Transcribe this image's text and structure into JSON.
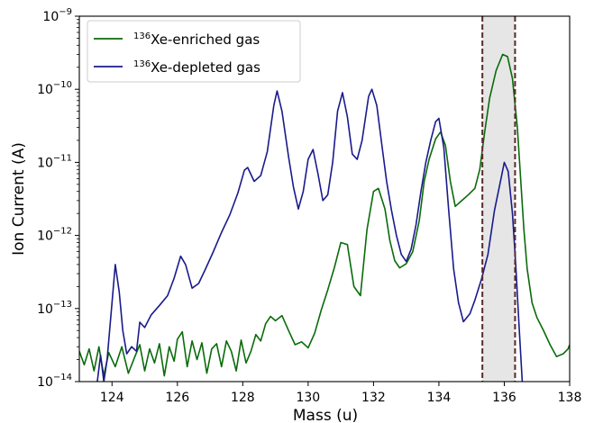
{
  "chart_data": {
    "type": "line",
    "title": "",
    "xlabel": "Mass (u)",
    "ylabel": "Ion Current (A)",
    "xlim": [
      123,
      138
    ],
    "ylim": [
      1e-14,
      1e-09
    ],
    "yscale": "log",
    "x_ticks": [
      124,
      126,
      128,
      130,
      132,
      134,
      136,
      138
    ],
    "x_tick_labels": [
      "124",
      "126",
      "128",
      "130",
      "132",
      "134",
      "136",
      "138"
    ],
    "y_ticks": [
      1e-14,
      1e-13,
      1e-12,
      1e-11,
      1e-10,
      1e-09
    ],
    "y_tick_labels": [
      {
        "base": "10",
        "exp": "−14"
      },
      {
        "base": "10",
        "exp": "−13"
      },
      {
        "base": "10",
        "exp": "−12"
      },
      {
        "base": "10",
        "exp": "−11"
      },
      {
        "base": "10",
        "exp": "−10"
      },
      {
        "base": "10",
        "exp": "−9"
      }
    ],
    "grid": false,
    "legend_position": "top-left",
    "shaded_region": {
      "x": [
        135.33,
        136.33
      ],
      "color": "#e6e6e6",
      "edge_color": "#5a2a2a"
    },
    "series": [
      {
        "name_sup": "136",
        "name": "Xe-enriched gas",
        "color": "#0a6b0a",
        "points": [
          [
            123.0,
            2.6e-14
          ],
          [
            123.15,
            1.7e-14
          ],
          [
            123.3,
            2.8e-14
          ],
          [
            123.45,
            1.4e-14
          ],
          [
            123.6,
            3e-14
          ],
          [
            123.75,
            1.2e-14
          ],
          [
            123.9,
            2.5e-14
          ],
          [
            124.1,
            1.6e-14
          ],
          [
            124.3,
            3e-14
          ],
          [
            124.5,
            1.3e-14
          ],
          [
            124.7,
            2.2e-14
          ],
          [
            124.85,
            3.2e-14
          ],
          [
            125.0,
            1.4e-14
          ],
          [
            125.15,
            2.8e-14
          ],
          [
            125.3,
            1.8e-14
          ],
          [
            125.45,
            3.3e-14
          ],
          [
            125.6,
            1.2e-14
          ],
          [
            125.75,
            3e-14
          ],
          [
            125.9,
            1.9e-14
          ],
          [
            126.0,
            3.8e-14
          ],
          [
            126.15,
            4.8e-14
          ],
          [
            126.3,
            1.6e-14
          ],
          [
            126.45,
            3.6e-14
          ],
          [
            126.6,
            2e-14
          ],
          [
            126.75,
            3.4e-14
          ],
          [
            126.9,
            1.3e-14
          ],
          [
            127.05,
            2.8e-14
          ],
          [
            127.2,
            3.3e-14
          ],
          [
            127.35,
            1.6e-14
          ],
          [
            127.5,
            3.6e-14
          ],
          [
            127.65,
            2.6e-14
          ],
          [
            127.8,
            1.4e-14
          ],
          [
            127.95,
            3.7e-14
          ],
          [
            128.1,
            1.8e-14
          ],
          [
            128.25,
            2.6e-14
          ],
          [
            128.4,
            4.4e-14
          ],
          [
            128.55,
            3.6e-14
          ],
          [
            128.7,
            6.2e-14
          ],
          [
            128.85,
            7.8e-14
          ],
          [
            129.0,
            6.8e-14
          ],
          [
            129.2,
            8e-14
          ],
          [
            129.4,
            5e-14
          ],
          [
            129.6,
            3.2e-14
          ],
          [
            129.8,
            3.5e-14
          ],
          [
            130.0,
            2.9e-14
          ],
          [
            130.2,
            4.6e-14
          ],
          [
            130.4,
            9.5e-14
          ],
          [
            130.6,
            1.8e-13
          ],
          [
            130.8,
            3.6e-13
          ],
          [
            131.0,
            8e-13
          ],
          [
            131.2,
            7.5e-13
          ],
          [
            131.4,
            2e-13
          ],
          [
            131.6,
            1.5e-13
          ],
          [
            131.8,
            1.2e-12
          ],
          [
            132.0,
            4e-12
          ],
          [
            132.15,
            4.4e-12
          ],
          [
            132.35,
            2.3e-12
          ],
          [
            132.5,
            8.5e-13
          ],
          [
            132.65,
            4.5e-13
          ],
          [
            132.8,
            3.6e-13
          ],
          [
            133.0,
            4.1e-13
          ],
          [
            133.2,
            6e-13
          ],
          [
            133.4,
            1.6e-12
          ],
          [
            133.55,
            5.5e-12
          ],
          [
            133.7,
            1.1e-11
          ],
          [
            133.9,
            2.1e-11
          ],
          [
            134.05,
            2.6e-11
          ],
          [
            134.2,
            1.7e-11
          ],
          [
            134.35,
            5.5e-12
          ],
          [
            134.5,
            2.5e-12
          ],
          [
            134.7,
            3e-12
          ],
          [
            134.9,
            3.6e-12
          ],
          [
            135.1,
            4.4e-12
          ],
          [
            135.25,
            8e-12
          ],
          [
            135.4,
            2.6e-11
          ],
          [
            135.55,
            7.5e-11
          ],
          [
            135.75,
            1.8e-10
          ],
          [
            135.95,
            3e-10
          ],
          [
            136.1,
            2.8e-10
          ],
          [
            136.25,
            1.4e-10
          ],
          [
            136.4,
            3e-11
          ],
          [
            136.5,
            6e-12
          ],
          [
            136.6,
            1.2e-12
          ],
          [
            136.7,
            3.5e-13
          ],
          [
            136.85,
            1.2e-13
          ],
          [
            137.0,
            7.5e-14
          ],
          [
            137.2,
            5e-14
          ],
          [
            137.4,
            3.2e-14
          ],
          [
            137.6,
            2.2e-14
          ],
          [
            137.8,
            2.4e-14
          ],
          [
            137.95,
            2.8e-14
          ],
          [
            138.0,
            3.2e-14
          ]
        ]
      },
      {
        "name_sup": "136",
        "name": "Xe-depleted gas",
        "color": "#1a1a8c",
        "points": [
          [
            123.55,
            1e-14
          ],
          [
            123.65,
            2.3e-14
          ],
          [
            123.75,
            1e-14
          ],
          [
            123.85,
            2e-14
          ],
          [
            124.0,
            1.2e-13
          ],
          [
            124.1,
            4e-13
          ],
          [
            124.22,
            1.7e-13
          ],
          [
            124.33,
            5e-14
          ],
          [
            124.45,
            2.4e-14
          ],
          [
            124.6,
            3e-14
          ],
          [
            124.75,
            2.6e-14
          ],
          [
            124.85,
            6.5e-14
          ],
          [
            125.0,
            5.5e-14
          ],
          [
            125.2,
            8.2e-14
          ],
          [
            125.45,
            1.1e-13
          ],
          [
            125.7,
            1.5e-13
          ],
          [
            125.9,
            2.6e-13
          ],
          [
            126.1,
            5.2e-13
          ],
          [
            126.25,
            4e-13
          ],
          [
            126.45,
            1.9e-13
          ],
          [
            126.65,
            2.2e-13
          ],
          [
            126.85,
            3.4e-13
          ],
          [
            127.1,
            6e-13
          ],
          [
            127.35,
            1.1e-12
          ],
          [
            127.6,
            1.9e-12
          ],
          [
            127.85,
            3.8e-12
          ],
          [
            128.05,
            7.8e-12
          ],
          [
            128.15,
            8.5e-12
          ],
          [
            128.35,
            5.5e-12
          ],
          [
            128.55,
            6.6e-12
          ],
          [
            128.75,
            1.4e-11
          ],
          [
            128.95,
            6e-11
          ],
          [
            129.05,
            9.5e-11
          ],
          [
            129.2,
            5e-11
          ],
          [
            129.4,
            1.2e-11
          ],
          [
            129.55,
            4.6e-12
          ],
          [
            129.7,
            2.3e-12
          ],
          [
            129.85,
            4e-12
          ],
          [
            130.0,
            1.1e-11
          ],
          [
            130.15,
            1.5e-11
          ],
          [
            130.3,
            7e-12
          ],
          [
            130.45,
            3e-12
          ],
          [
            130.6,
            3.6e-12
          ],
          [
            130.75,
            1e-11
          ],
          [
            130.9,
            5e-11
          ],
          [
            131.05,
            9e-11
          ],
          [
            131.2,
            4.2e-11
          ],
          [
            131.35,
            1.3e-11
          ],
          [
            131.5,
            1.1e-11
          ],
          [
            131.65,
            2e-11
          ],
          [
            131.85,
            8e-11
          ],
          [
            131.95,
            1e-10
          ],
          [
            132.1,
            6e-11
          ],
          [
            132.25,
            1.8e-11
          ],
          [
            132.4,
            5.5e-12
          ],
          [
            132.55,
            2.2e-12
          ],
          [
            132.7,
            1e-12
          ],
          [
            132.85,
            5.5e-13
          ],
          [
            133.0,
            4.4e-13
          ],
          [
            133.15,
            6.5e-13
          ],
          [
            133.3,
            1.4e-12
          ],
          [
            133.45,
            4e-12
          ],
          [
            133.6,
            1e-11
          ],
          [
            133.75,
            2e-11
          ],
          [
            133.9,
            3.6e-11
          ],
          [
            134.0,
            4e-11
          ],
          [
            134.15,
            1.6e-11
          ],
          [
            134.3,
            2.2e-12
          ],
          [
            134.45,
            3.5e-13
          ],
          [
            134.6,
            1.2e-13
          ],
          [
            134.75,
            6.6e-14
          ],
          [
            134.95,
            8.5e-14
          ],
          [
            135.1,
            1.3e-13
          ],
          [
            135.3,
            2.5e-13
          ],
          [
            135.5,
            5.5e-13
          ],
          [
            135.7,
            2.2e-12
          ],
          [
            135.9,
            6e-12
          ],
          [
            136.0,
            1e-11
          ],
          [
            136.12,
            7.5e-12
          ],
          [
            136.25,
            2e-12
          ],
          [
            136.35,
            4e-13
          ],
          [
            136.45,
            6e-14
          ],
          [
            136.55,
            1e-14
          ]
        ]
      }
    ]
  }
}
